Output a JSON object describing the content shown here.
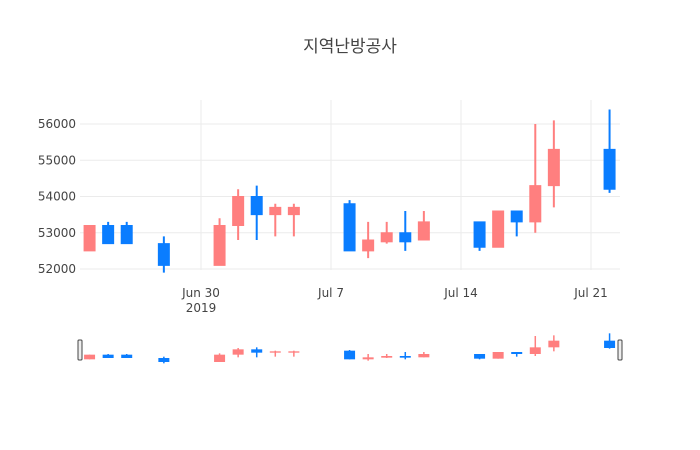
{
  "chart_data": {
    "type": "candlestick",
    "title": "지역난방공사",
    "xlabel": "",
    "ylabel": "",
    "ylim": [
      51850,
      56500
    ],
    "y_ticks": [
      52000,
      53000,
      54000,
      55000,
      56000
    ],
    "x_ticks": [
      {
        "date": "2019-06-30",
        "label": "Jun 30",
        "sublabel": "2019"
      },
      {
        "date": "2019-07-07",
        "label": "Jul 7",
        "sublabel": ""
      },
      {
        "date": "2019-07-14",
        "label": "Jul 14",
        "sublabel": ""
      },
      {
        "date": "2019-07-21",
        "label": "Jul 21",
        "sublabel": ""
      }
    ],
    "grid": true,
    "legend": false,
    "range_slider": true,
    "colors": {
      "increasing": "#ff7f7f",
      "decreasing": "#0a7dff"
    },
    "candles": [
      {
        "date": "2019-06-24",
        "open": 52500,
        "high": 53200,
        "low": 52500,
        "close": 53200
      },
      {
        "date": "2019-06-25",
        "open": 53200,
        "high": 53300,
        "low": 52700,
        "close": 52700
      },
      {
        "date": "2019-06-26",
        "open": 53200,
        "high": 53300,
        "low": 52700,
        "close": 52700
      },
      {
        "date": "2019-06-28",
        "open": 52700,
        "high": 52900,
        "low": 51900,
        "close": 52100
      },
      {
        "date": "2019-07-01",
        "open": 52100,
        "high": 53400,
        "low": 52100,
        "close": 53200
      },
      {
        "date": "2019-07-02",
        "open": 53200,
        "high": 54200,
        "low": 52800,
        "close": 54000
      },
      {
        "date": "2019-07-03",
        "open": 54000,
        "high": 54300,
        "low": 52800,
        "close": 53500
      },
      {
        "date": "2019-07-04",
        "open": 53500,
        "high": 53800,
        "low": 52900,
        "close": 53700
      },
      {
        "date": "2019-07-05",
        "open": 53500,
        "high": 53800,
        "low": 52900,
        "close": 53700
      },
      {
        "date": "2019-07-08",
        "open": 53800,
        "high": 53900,
        "low": 52500,
        "close": 52500
      },
      {
        "date": "2019-07-09",
        "open": 52500,
        "high": 53300,
        "low": 52300,
        "close": 52800
      },
      {
        "date": "2019-07-10",
        "open": 52750,
        "high": 53300,
        "low": 52700,
        "close": 53000
      },
      {
        "date": "2019-07-11",
        "open": 53000,
        "high": 53600,
        "low": 52500,
        "close": 52750
      },
      {
        "date": "2019-07-12",
        "open": 52800,
        "high": 53600,
        "low": 52800,
        "close": 53300
      },
      {
        "date": "2019-07-15",
        "open": 53300,
        "high": 53300,
        "low": 52500,
        "close": 52600
      },
      {
        "date": "2019-07-16",
        "open": 52600,
        "high": 53600,
        "low": 52600,
        "close": 53600
      },
      {
        "date": "2019-07-17",
        "open": 53600,
        "high": 53600,
        "low": 52900,
        "close": 53300
      },
      {
        "date": "2019-07-18",
        "open": 53300,
        "high": 56000,
        "low": 53000,
        "close": 54300
      },
      {
        "date": "2019-07-19",
        "open": 54300,
        "high": 56100,
        "low": 53700,
        "close": 55300
      },
      {
        "date": "2019-07-22",
        "open": 55300,
        "high": 56400,
        "low": 54100,
        "close": 54200
      }
    ]
  }
}
